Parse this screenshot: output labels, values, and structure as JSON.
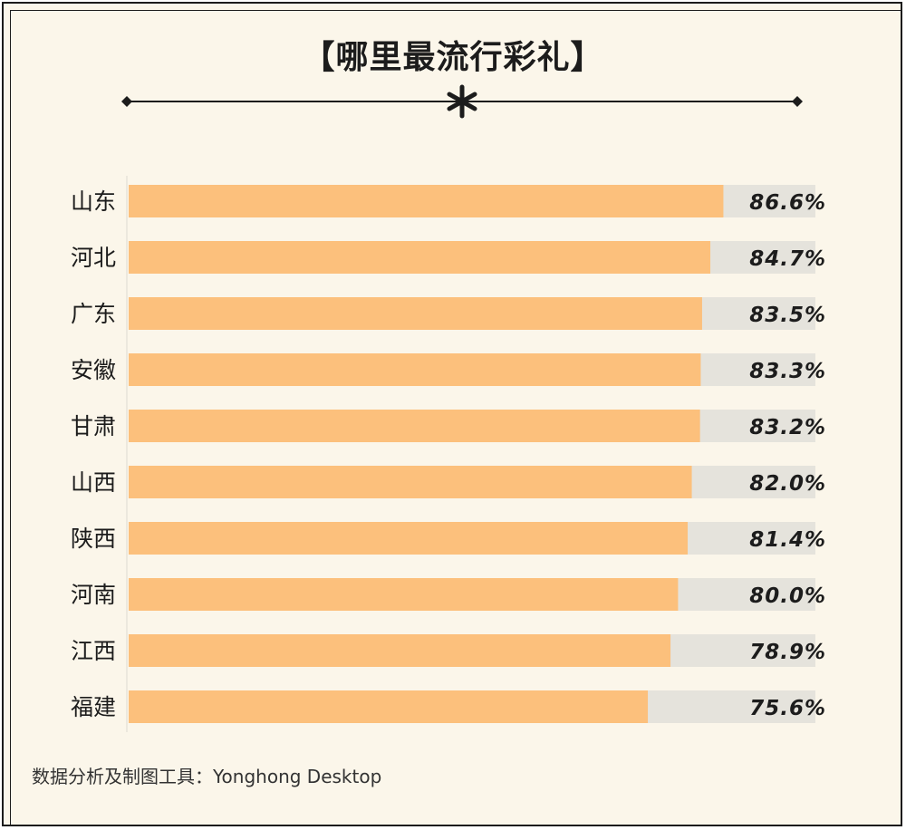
{
  "title": "【哪里最流行彩礼】",
  "source": "数据分析及制图工具：Yonghong Desktop",
  "colors": {
    "background": "#fbf6ea",
    "bar": "#fcc07c",
    "track": "#e5e3dc",
    "text": "#1c1c1c"
  },
  "chart_data": {
    "type": "bar",
    "orientation": "horizontal",
    "categories": [
      "山东",
      "河北",
      "广东",
      "安徽",
      "甘肃",
      "山西",
      "陕西",
      "河南",
      "江西",
      "福建"
    ],
    "values": [
      86.6,
      84.7,
      83.5,
      83.3,
      83.2,
      82.0,
      81.4,
      80.0,
      78.9,
      75.6
    ],
    "value_labels": [
      "86.6%",
      "84.7%",
      "83.5%",
      "83.3%",
      "83.2%",
      "82.0%",
      "81.4%",
      "80.0%",
      "78.9%",
      "75.6%"
    ],
    "unit": "%",
    "xlim": [
      0,
      100
    ],
    "grid": false,
    "legend": "none"
  }
}
